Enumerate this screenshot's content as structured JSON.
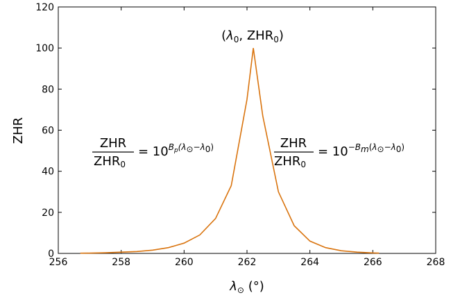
{
  "chart_data": {
    "type": "line",
    "title": "",
    "xlabel": "λ⊙ (°)",
    "ylabel": "ZHR",
    "xlim": [
      256,
      268
    ],
    "ylim": [
      0,
      120
    ],
    "xticks": [
      256,
      258,
      260,
      262,
      264,
      266,
      268
    ],
    "yticks": [
      0,
      20,
      40,
      60,
      80,
      100,
      120
    ],
    "grid": false,
    "legend": "none",
    "line_color": "#d9730d",
    "peak_label": "(λ0, ZHR0)",
    "left_formula": "ZHR/ZHR0 = 10^{Bp(λ⊙−λ0)}",
    "right_formula": "ZHR/ZHR0 = 10^{−Bm(λ⊙−λ0)}",
    "series": [
      {
        "x": [
          256.7,
          257.0,
          257.5,
          258.0,
          258.5,
          259.0,
          259.5,
          260.0,
          260.5,
          261.0,
          261.5,
          262.0,
          262.2,
          262.5,
          263.0,
          263.5,
          264.0,
          264.5,
          265.0,
          265.5,
          266.0,
          266.2
        ],
        "y": [
          0.1,
          0.15,
          0.3,
          0.6,
          0.9,
          1.6,
          2.8,
          5.0,
          9.0,
          17.0,
          33.0,
          75.0,
          100.0,
          67.0,
          30.0,
          13.5,
          6.0,
          2.8,
          1.3,
          0.6,
          0.25,
          0.15
        ]
      }
    ]
  }
}
